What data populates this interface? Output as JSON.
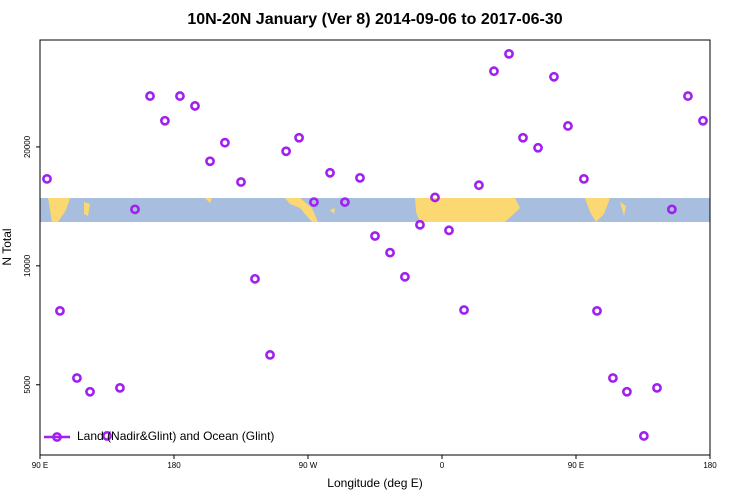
{
  "chart_data": {
    "type": "scatter",
    "title": "10N-20N January (Ver 8)   2014-09-06 to 2017-06-30",
    "x_label": "Longitude (deg E)",
    "y_label": "N Total",
    "xlim": [
      90,
      540
    ],
    "xticks": [
      {
        "value": 90,
        "label": "90 E"
      },
      {
        "value": 180,
        "label": "180"
      },
      {
        "value": 270,
        "label": "90 W"
      },
      {
        "value": 360,
        "label": "0"
      },
      {
        "value": 450,
        "label": "90 E"
      },
      {
        "value": 540,
        "label": "180"
      }
    ],
    "ylim": [
      3320,
      37300
    ],
    "yticks": [
      5000,
      10000,
      20000
    ],
    "log_y": true,
    "legend_position": "bottom-left",
    "series": [
      {
        "name": "Land (Nadir&Glint) and Ocean (Glint)",
        "color": "#a020f0",
        "x": [
          94.7,
          103.4,
          114.8,
          123.6,
          135,
          143.7,
          153.8,
          163.9,
          173.9,
          184,
          194.1,
          204.2,
          214.2,
          225,
          234.4,
          244.5,
          255.3,
          264,
          274,
          284.8,
          294.8,
          304.9,
          315,
          325.1,
          335.1,
          345.2,
          355.3,
          364.7,
          374.8,
          384.8,
          394.9,
          405,
          414.4,
          424.5,
          435.2,
          444.6,
          455.3,
          464.1,
          474.8,
          484.2,
          495.6,
          504.4,
          514.4,
          525.2,
          535.3
        ],
        "values": [
          16600,
          7690,
          5200,
          4800,
          3710,
          4910,
          13900,
          26900,
          23300,
          26900,
          25400,
          18400,
          20500,
          16300,
          9270,
          5950,
          19500,
          21100,
          14500,
          17200,
          14500,
          16700,
          11900,
          10800,
          9380,
          12700,
          14900,
          12300,
          7730,
          16000,
          31100,
          34400,
          21100,
          19900,
          30100,
          22600,
          16600,
          7690,
          5200,
          4800,
          3710,
          4910,
          13900,
          26900,
          23300
        ]
      }
    ]
  }
}
